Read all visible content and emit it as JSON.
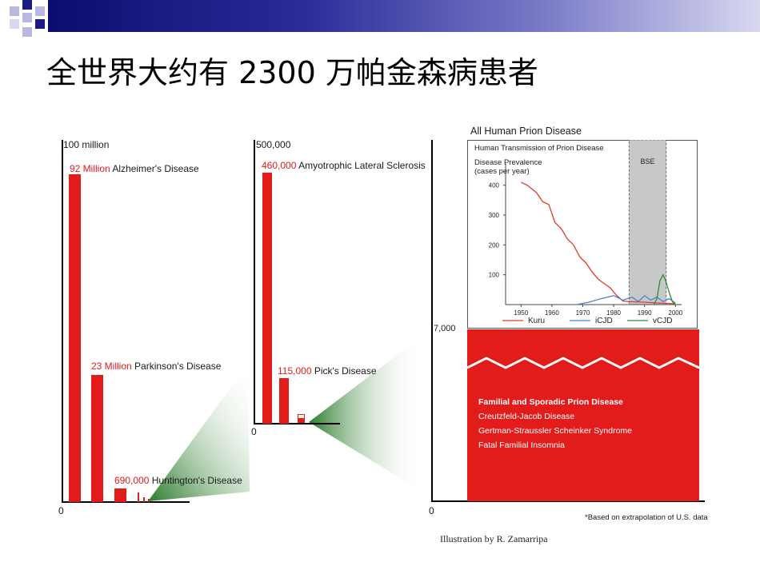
{
  "page": {
    "title": "全世界大约有 2300 万帕金森病患者",
    "illustration_credit": "Illustration by R. Zamarripa",
    "footnote": "*Based on extrapolation of U.S. data",
    "accent_color": "#e21b1b",
    "header_color": "#1a1a80"
  },
  "chart_data": [
    {
      "type": "bar",
      "scale_label": "100 million",
      "zero_label": "0",
      "ylim": [
        0,
        100000000
      ],
      "bars": [
        {
          "value_label": "92 Million",
          "name": "Alzheimer's Disease",
          "value": 92000000
        },
        {
          "value_label": "23 Million",
          "name": "Parkinson's Disease",
          "value": 23000000
        },
        {
          "value_label": "690,000",
          "name": "Huntington's Disease",
          "value": 690000
        }
      ]
    },
    {
      "type": "bar",
      "scale_label": "500,000",
      "zero_label": "0",
      "ylim": [
        0,
        500000
      ],
      "bars": [
        {
          "value_label": "460,000",
          "name": "Amyotrophic Lateral Sclerosis",
          "value": 460000
        },
        {
          "value_label": "115,000",
          "name": "Pick's Disease",
          "value": 115000
        }
      ]
    },
    {
      "type": "bar",
      "title": "All Human Prion Disease",
      "scale_label": "7,000",
      "zero_label": "0",
      "block_title": "Familial and Sporadic Prion Disease",
      "block_items": [
        "Creutzfeld-Jacob Disease",
        "Gertman-Straussler Scheinker Syndrome",
        "Fatal Familial Insomnia"
      ]
    },
    {
      "type": "line",
      "title": "Human Transmission of Prion Disease",
      "ylabel": "Disease Prevalence (cases per year)",
      "shaded_region": {
        "label": "BSE",
        "x_start": 1985,
        "x_end": 1997
      },
      "xlim": [
        1945,
        2002
      ],
      "ylim": [
        0,
        450
      ],
      "x_ticks": [
        "1950",
        "1960",
        "1970",
        "1980",
        "1990",
        "2000"
      ],
      "y_ticks": [
        "100",
        "200",
        "300",
        "400"
      ],
      "series": [
        {
          "name": "Kuru",
          "color": "#e03a2a",
          "x": [
            1950,
            1952,
            1955,
            1957,
            1959,
            1961,
            1963,
            1965,
            1967,
            1969,
            1971,
            1973,
            1975,
            1977,
            1979,
            1981,
            1983,
            1985,
            1990,
            1995,
            2000
          ],
          "y": [
            410,
            400,
            375,
            345,
            335,
            275,
            255,
            220,
            200,
            160,
            140,
            110,
            85,
            70,
            55,
            30,
            12,
            10,
            8,
            5,
            3
          ]
        },
        {
          "name": "iCJD",
          "color": "#4a86c8",
          "x": [
            1968,
            1972,
            1976,
            1980,
            1983,
            1986,
            1988,
            1990,
            1992,
            1994,
            1996,
            1998,
            2000
          ],
          "y": [
            0,
            8,
            20,
            30,
            15,
            25,
            10,
            30,
            15,
            25,
            10,
            20,
            5
          ]
        },
        {
          "name": "vCJD",
          "color": "#2e8b3a",
          "x": [
            1993,
            1994,
            1995,
            1996,
            1997,
            1998,
            1999,
            2000
          ],
          "y": [
            0,
            20,
            80,
            100,
            75,
            40,
            10,
            0
          ]
        }
      ]
    }
  ]
}
